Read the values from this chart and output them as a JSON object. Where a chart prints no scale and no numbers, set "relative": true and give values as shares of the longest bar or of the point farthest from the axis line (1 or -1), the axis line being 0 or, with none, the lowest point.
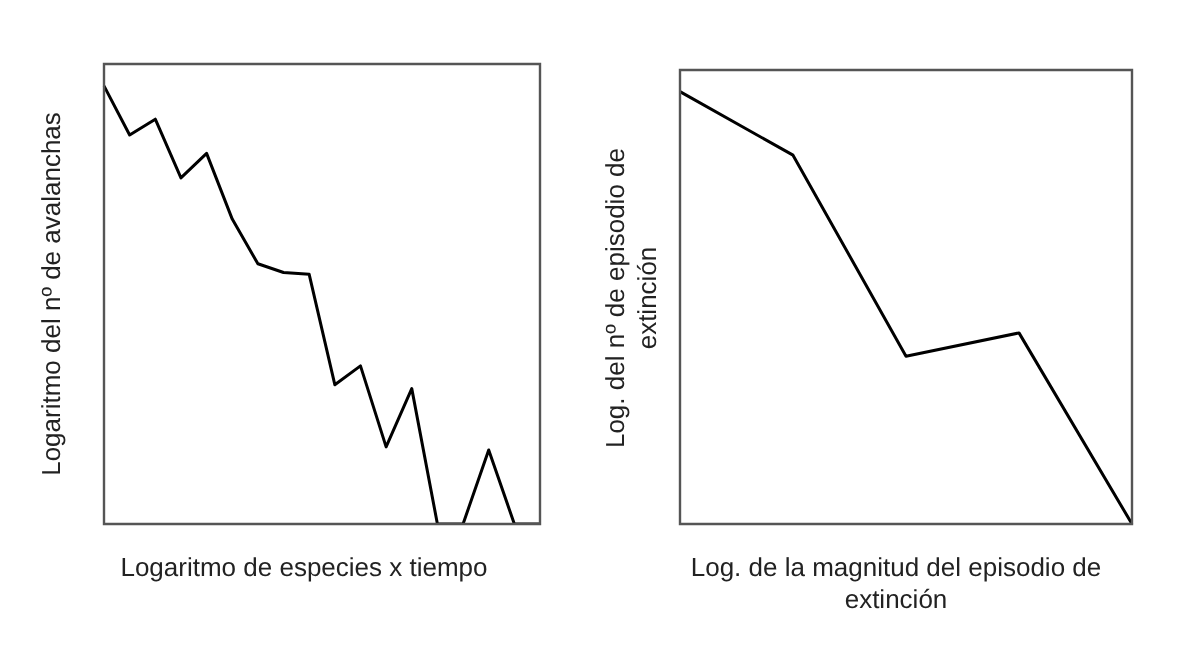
{
  "chart_data": [
    {
      "type": "line",
      "relative": true,
      "ylabel": "Logaritmo del nº de avalanchas",
      "xlabel": "Logaritmo de especies x tiempo",
      "categories": [
        null,
        null,
        null,
        null,
        null,
        null,
        null,
        null,
        null,
        null,
        null,
        null,
        null,
        null,
        null,
        null,
        null,
        null
      ],
      "series": [
        {
          "color": "#000000",
          "values": [
            1,
            0.888,
            0.924,
            0.79,
            0.846,
            0.696,
            0.594,
            0.574,
            0.57,
            0.318,
            0.361,
            0.176,
            0.309,
            0,
            0,
            0.169,
            0,
            0
          ]
        }
      ],
      "marker": "none",
      "legend": false,
      "grid": false
    },
    {
      "type": "line",
      "relative": true,
      "ylabel": "Log. del nº de episodio de extinción",
      "xlabel": "Log. de la magnitud del episodio de extinción",
      "categories": [
        null,
        null,
        null,
        null,
        null
      ],
      "series": [
        {
          "color": "#000000",
          "values": [
            1,
            0.853,
            0.388,
            0.442,
            0
          ]
        }
      ],
      "marker": "none",
      "legend": false,
      "grid": false
    }
  ]
}
